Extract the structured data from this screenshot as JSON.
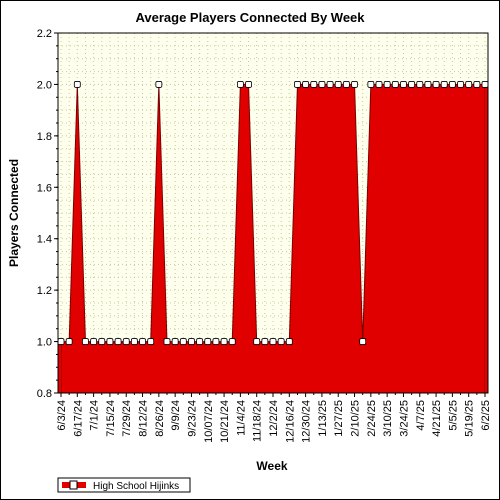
{
  "chart_data": {
    "type": "area",
    "title": "Average Players Connected By Week",
    "xlabel": "Week",
    "ylabel": "Players Connected",
    "ylim": [
      0.8,
      2.2
    ],
    "yticks": [
      0.8,
      1.0,
      1.2,
      1.4,
      1.6,
      1.8,
      2.0,
      2.2
    ],
    "ytick_labels": [
      "0.8",
      "1.0",
      "1.2",
      "1.4",
      "1.6",
      "1.8",
      "2.0",
      "2.2"
    ],
    "grid": true,
    "legend_position": "bottom-left",
    "x": [
      "6/3/24",
      "6/10/24",
      "6/17/24",
      "6/24/24",
      "7/1/24",
      "7/8/24",
      "7/15/24",
      "7/22/24",
      "7/29/24",
      "8/5/24",
      "8/12/24",
      "8/19/24",
      "8/26/24",
      "9/2/24",
      "9/9/24",
      "9/16/24",
      "9/23/24",
      "9/30/24",
      "10/7/24",
      "10/14/24",
      "10/21/24",
      "10/28/24",
      "11/4/24",
      "11/11/24",
      "11/18/24",
      "11/25/24",
      "12/2/24",
      "12/9/24",
      "12/16/24",
      "12/23/24",
      "12/30/24",
      "1/6/25",
      "1/13/25",
      "1/20/25",
      "1/27/25",
      "2/3/25",
      "2/10/25",
      "2/17/25",
      "2/24/25",
      "3/3/25",
      "3/10/25",
      "3/17/25",
      "3/24/25",
      "3/31/25",
      "4/7/25",
      "4/14/25",
      "4/21/25",
      "4/28/25",
      "5/5/25",
      "5/12/25",
      "5/19/25",
      "5/26/25",
      "6/2/25"
    ],
    "x_tick_labels": [
      "6/3/24",
      "6/17/24",
      "7/1/24",
      "7/15/24",
      "7/29/24",
      "8/12/24",
      "8/26/24",
      "9/9/24",
      "9/23/24",
      "10/07/24",
      "10/21/24",
      "11/4/24",
      "11/18/24",
      "12/2/24",
      "12/16/24",
      "12/30/24",
      "1/13/25",
      "1/27/25",
      "2/10/25",
      "2/24/25",
      "3/10/25",
      "3/24/25",
      "4/7/25",
      "4/21/25",
      "5/5/25",
      "5/19/25",
      "6/2/25"
    ],
    "series": [
      {
        "name": "High School Hijinks",
        "color": "#e00000",
        "marker_fill": "#ffffff",
        "values": [
          1,
          1,
          2,
          1,
          1,
          1,
          1,
          1,
          1,
          1,
          1,
          1,
          2,
          1,
          1,
          1,
          1,
          1,
          1,
          1,
          1,
          1,
          2,
          2,
          1,
          1,
          1,
          1,
          1,
          2,
          2,
          2,
          2,
          2,
          2,
          2,
          2,
          1,
          2,
          2,
          2,
          2,
          2,
          2,
          2,
          2,
          2,
          2,
          2,
          2,
          2,
          2,
          2
        ]
      }
    ],
    "plot_background": "#ffffee",
    "grid_color": "#c8c8a0"
  }
}
